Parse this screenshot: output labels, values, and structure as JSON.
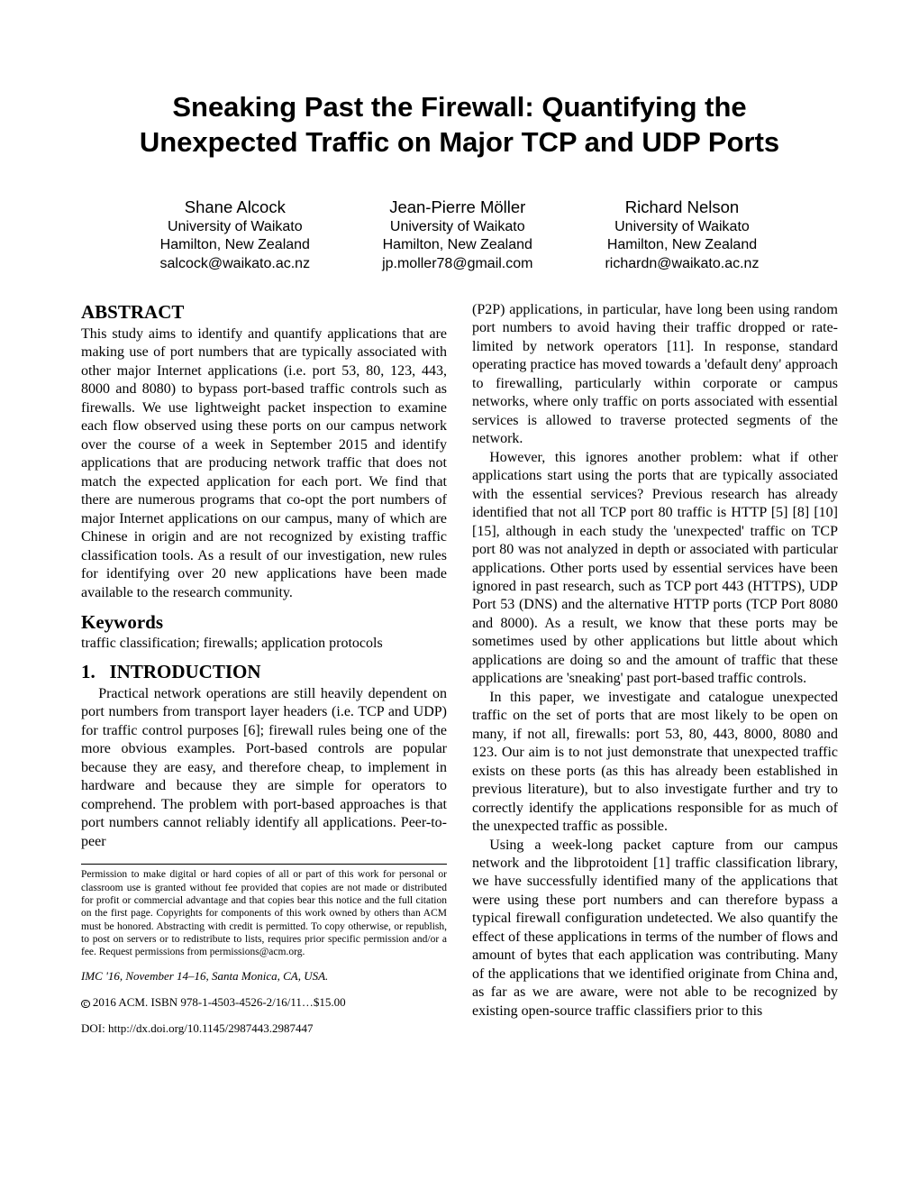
{
  "title": "Sneaking Past the Firewall: Quantifying the Unexpected Traffic on Major TCP and UDP Ports",
  "authors": [
    {
      "name": "Shane Alcock",
      "affil": "University of Waikato",
      "loc": "Hamilton, New Zealand",
      "email": "salcock@waikato.ac.nz"
    },
    {
      "name": "Jean-Pierre Möller",
      "affil": "University of Waikato",
      "loc": "Hamilton, New Zealand",
      "email": "jp.moller78@gmail.com"
    },
    {
      "name": "Richard Nelson",
      "affil": "University of Waikato",
      "loc": "Hamilton, New Zealand",
      "email": "richardn@waikato.ac.nz"
    }
  ],
  "headings": {
    "abstract": "ABSTRACT",
    "keywords": "Keywords",
    "intro_num": "1.",
    "intro": "INTRODUCTION"
  },
  "abstract": "This study aims to identify and quantify applications that are making use of port numbers that are typically associated with other major Internet applications (i.e. port 53, 80, 123, 443, 8000 and 8080) to bypass port-based traffic controls such as firewalls. We use lightweight packet inspection to examine each flow observed using these ports on our campus network over the course of a week in September 2015 and identify applications that are producing network traffic that does not match the expected application for each port. We find that there are numerous programs that co-opt the port numbers of major Internet applications on our campus, many of which are Chinese in origin and are not recognized by existing traffic classification tools. As a result of our investigation, new rules for identifying over 20 new applications have been made available to the research community.",
  "keywords_text": "traffic classification; firewalls; application protocols",
  "intro_p1": "Practical network operations are still heavily dependent on port numbers from transport layer headers (i.e. TCP and UDP) for traffic control purposes [6]; firewall rules being one of the more obvious examples. Port-based controls are popular because they are easy, and therefore cheap, to implement in hardware and because they are simple for operators to comprehend. The problem with port-based approaches is that port numbers cannot reliably identify all applications. Peer-to-peer",
  "col2_p1": "(P2P) applications, in particular, have long been using random port numbers to avoid having their traffic dropped or rate-limited by network operators [11]. In response, standard operating practice has moved towards a 'default deny' approach to firewalling, particularly within corporate or campus networks, where only traffic on ports associated with essential services is allowed to traverse protected segments of the network.",
  "col2_p2": "However, this ignores another problem: what if other applications start using the ports that are typically associated with the essential services? Previous research has already identified that not all TCP port 80 traffic is HTTP [5] [8] [10] [15], although in each study the 'unexpected' traffic on TCP port 80 was not analyzed in depth or associated with particular applications. Other ports used by essential services have been ignored in past research, such as TCP port 443 (HTTPS), UDP Port 53 (DNS) and the alternative HTTP ports (TCP Port 8080 and 8000). As a result, we know that these ports may be sometimes used by other applications but little about which applications are doing so and the amount of traffic that these applications are 'sneaking' past port-based traffic controls.",
  "col2_p3": "In this paper, we investigate and catalogue unexpected traffic on the set of ports that are most likely to be open on many, if not all, firewalls: port 53, 80, 443, 8000, 8080 and 123. Our aim is to not just demonstrate that unexpected traffic exists on these ports (as this has already been established in previous literature), but to also investigate further and try to correctly identify the applications responsible for as much of the unexpected traffic as possible.",
  "col2_p4": "Using a week-long packet capture from our campus network and the libprotoident [1] traffic classification library, we have successfully identified many of the applications that were using these port numbers and can therefore bypass a typical firewall configuration undetected. We also quantify the effect of these applications in terms of the number of flows and amount of bytes that each application was contributing. Many of the applications that we identified originate from China and, as far as we are aware, were not able to be recognized by existing open-source traffic classifiers prior to this",
  "permission": "Permission to make digital or hard copies of all or part of this work for personal or classroom use is granted without fee provided that copies are not made or distributed for profit or commercial advantage and that copies bear this notice and the full citation on the first page. Copyrights for components of this work owned by others than ACM must be honored. Abstracting with credit is permitted. To copy otherwise, or republish, to post on servers or to redistribute to lists, requires prior specific permission and/or a fee. Request permissions from permissions@acm.org.",
  "conf": "IMC '16, November 14–16, Santa Monica, CA, USA.",
  "copyright_line": " 2016 ACM. ISBN 978-1-4503-4526-2/16/11…$15.00",
  "doi_label": "DOI: ",
  "doi_url": "http://dx.doi.org/10.1145/2987443.2987447"
}
